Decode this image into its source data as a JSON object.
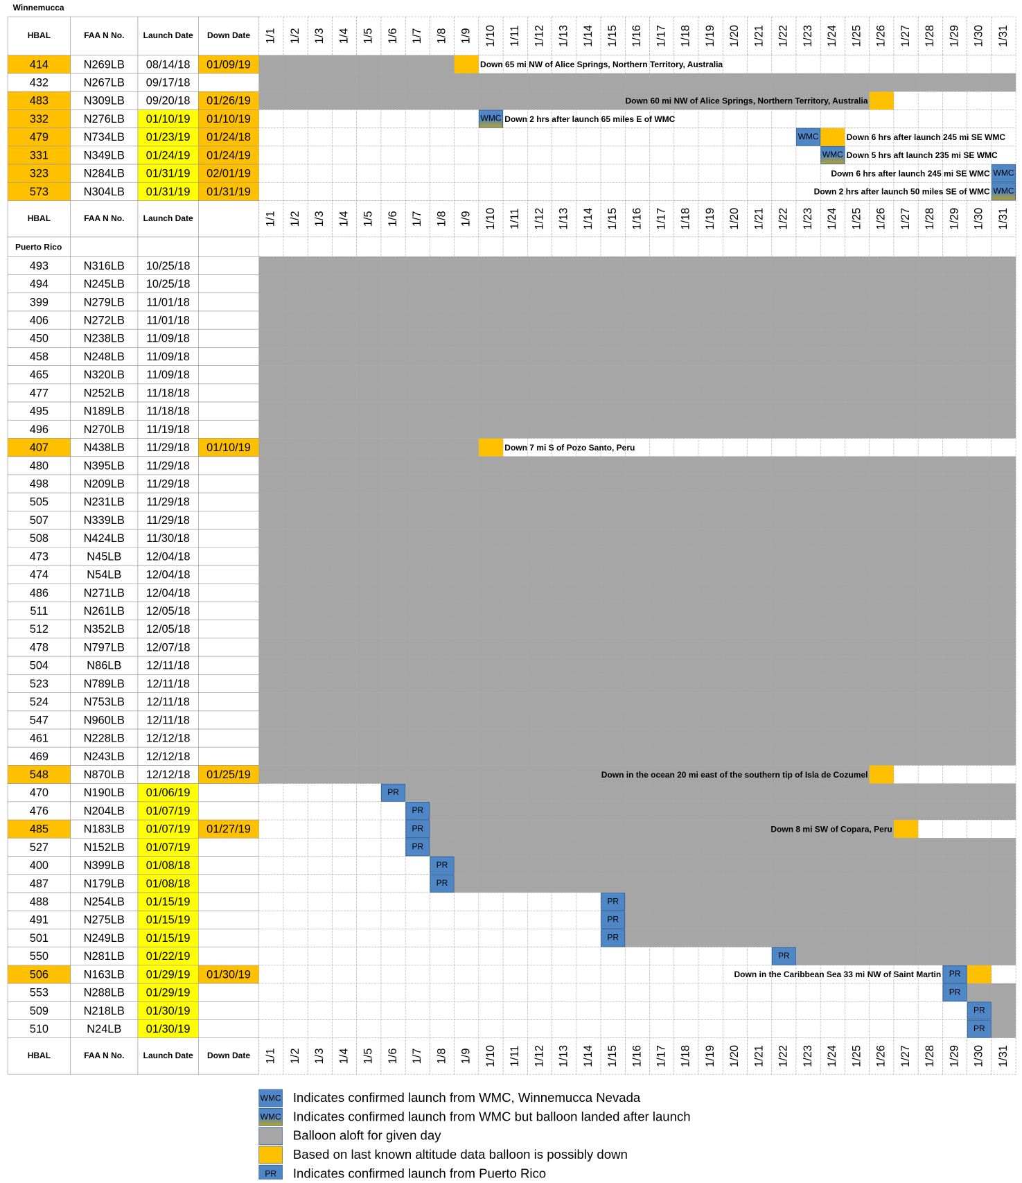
{
  "region_1": "Winnemucca",
  "header": {
    "hbal": "HBAL",
    "faa": "FAA N No.",
    "launch": "Launch Date",
    "down": "Down Date"
  },
  "days": [
    "1/1",
    "1/2",
    "1/3",
    "1/4",
    "1/5",
    "1/6",
    "1/7",
    "1/8",
    "1/9",
    "1/10",
    "1/11",
    "1/12",
    "1/13",
    "1/14",
    "1/15",
    "1/16",
    "1/17",
    "1/18",
    "1/19",
    "1/20",
    "1/21",
    "1/22",
    "1/23",
    "1/24",
    "1/25",
    "1/26",
    "1/27",
    "1/28",
    "1/29",
    "1/30",
    "1/31"
  ],
  "winnemucca_rows": [
    {
      "hbal": "414",
      "faa": "N269LB",
      "launch": "08/14/18",
      "down": "01/09/19",
      "note": "Down 65 mi NW of Alice Springs, Northern Territory, Australia"
    },
    {
      "hbal": "432",
      "faa": "N267LB",
      "launch": "09/17/18"
    },
    {
      "hbal": "483",
      "faa": "N309LB",
      "launch": "09/20/18",
      "down": "01/26/19",
      "note": "Down 60 mi NW of Alice Springs, Northern Territory, Australia"
    },
    {
      "hbal": "332",
      "faa": "N276LB",
      "launch": "01/10/19",
      "down": "01/10/19",
      "tag": "WMC",
      "note": "Down 2 hrs after launch 65 miles E of WMC"
    },
    {
      "hbal": "479",
      "faa": "N734LB",
      "launch": "01/23/19",
      "down": "01/24/18",
      "tag": "WMC",
      "note": "Down 6 hrs after launch 245 mi SE WMC"
    },
    {
      "hbal": "331",
      "faa": "N349LB",
      "launch": "01/24/19",
      "down": "01/24/19",
      "tag": "WMC",
      "note": "Down 5 hrs aft launch 235 mi SE WMC"
    },
    {
      "hbal": "323",
      "faa": "N284LB",
      "launch": "01/31/19",
      "down": "02/01/19",
      "tag": "WMC",
      "note": "Down 6 hrs after launch 245 mi SE WMC"
    },
    {
      "hbal": "573",
      "faa": "N304LB",
      "launch": "01/31/19",
      "down": "01/31/19",
      "tag": "WMC",
      "note": "Down 2 hrs after launch 50 miles SE of WMC"
    }
  ],
  "middle_header": {
    "hbal": "HBAL",
    "faa": "FAA N No.",
    "launch": "Launch Date"
  },
  "region_2": "Puerto Rico",
  "puerto_rico_rows": [
    {
      "hbal": "493",
      "faa": "N316LB",
      "launch": "10/25/18"
    },
    {
      "hbal": "494",
      "faa": "N245LB",
      "launch": "10/25/18"
    },
    {
      "hbal": "399",
      "faa": "N279LB",
      "launch": "11/01/18"
    },
    {
      "hbal": "406",
      "faa": "N272LB",
      "launch": "11/01/18"
    },
    {
      "hbal": "450",
      "faa": "N238LB",
      "launch": "11/09/18"
    },
    {
      "hbal": "458",
      "faa": "N248LB",
      "launch": "11/09/18"
    },
    {
      "hbal": "465",
      "faa": "N320LB",
      "launch": "11/09/18"
    },
    {
      "hbal": "477",
      "faa": "N252LB",
      "launch": "11/18/18"
    },
    {
      "hbal": "495",
      "faa": "N189LB",
      "launch": "11/18/18"
    },
    {
      "hbal": "496",
      "faa": "N270LB",
      "launch": "11/19/18"
    },
    {
      "hbal": "407",
      "faa": "N438LB",
      "launch": "11/29/18",
      "down": "01/10/19",
      "note": "Down 7 mi S of Pozo Santo, Peru"
    },
    {
      "hbal": "480",
      "faa": "N395LB",
      "launch": "11/29/18"
    },
    {
      "hbal": "498",
      "faa": "N209LB",
      "launch": "11/29/18"
    },
    {
      "hbal": "505",
      "faa": "N231LB",
      "launch": "11/29/18"
    },
    {
      "hbal": "507",
      "faa": "N339LB",
      "launch": "11/29/18"
    },
    {
      "hbal": "508",
      "faa": "N424LB",
      "launch": "11/30/18"
    },
    {
      "hbal": "473",
      "faa": "N45LB",
      "launch": "12/04/18"
    },
    {
      "hbal": "474",
      "faa": "N54LB",
      "launch": "12/04/18"
    },
    {
      "hbal": "486",
      "faa": "N271LB",
      "launch": "12/04/18"
    },
    {
      "hbal": "511",
      "faa": "N261LB",
      "launch": "12/05/18"
    },
    {
      "hbal": "512",
      "faa": "N352LB",
      "launch": "12/05/18"
    },
    {
      "hbal": "478",
      "faa": "N797LB",
      "launch": "12/07/18"
    },
    {
      "hbal": "504",
      "faa": "N86LB",
      "launch": "12/11/18"
    },
    {
      "hbal": "523",
      "faa": "N789LB",
      "launch": "12/11/18"
    },
    {
      "hbal": "524",
      "faa": "N753LB",
      "launch": "12/11/18"
    },
    {
      "hbal": "547",
      "faa": "N960LB",
      "launch": "12/11/18"
    },
    {
      "hbal": "461",
      "faa": "N228LB",
      "launch": "12/12/18"
    },
    {
      "hbal": "469",
      "faa": "N243LB",
      "launch": "12/12/18"
    },
    {
      "hbal": "548",
      "faa": "N870LB",
      "launch": "12/12/18",
      "down": "01/25/19",
      "note": "Down in the ocean 20 mi east of the southern tip of Isla de Cozumel"
    },
    {
      "hbal": "470",
      "faa": "N190LB",
      "launch": "01/06/19",
      "tag": "PR"
    },
    {
      "hbal": "476",
      "faa": "N204LB",
      "launch": "01/07/19",
      "tag": "PR"
    },
    {
      "hbal": "485",
      "faa": "N183LB",
      "launch": "01/07/19",
      "down": "01/27/19",
      "tag": "PR",
      "note": "Down 8 mi SW of Copara, Peru"
    },
    {
      "hbal": "527",
      "faa": "N152LB",
      "launch": "01/07/19",
      "tag": "PR"
    },
    {
      "hbal": "400",
      "faa": "N399LB",
      "launch": "01/08/18",
      "tag": "PR"
    },
    {
      "hbal": "487",
      "faa": "N179LB",
      "launch": "01/08/18",
      "tag": "PR"
    },
    {
      "hbal": "488",
      "faa": "N254LB",
      "launch": "01/15/19",
      "tag": "PR"
    },
    {
      "hbal": "491",
      "faa": "N275LB",
      "launch": "01/15/19",
      "tag": "PR"
    },
    {
      "hbal": "501",
      "faa": "N249LB",
      "launch": "01/15/19",
      "tag": "PR"
    },
    {
      "hbal": "550",
      "faa": "N281LB",
      "launch": "01/22/19",
      "tag": "PR"
    },
    {
      "hbal": "506",
      "faa": "N163LB",
      "launch": "01/29/19",
      "down": "01/30/19",
      "tag": "PR",
      "note": "Down in the Caribbean Sea 33 mi NW of Saint  Martin"
    },
    {
      "hbal": "553",
      "faa": "N288LB",
      "launch": "01/29/19",
      "tag": "PR"
    },
    {
      "hbal": "509",
      "faa": "N218LB",
      "launch": "01/30/19",
      "tag": "PR"
    },
    {
      "hbal": "510",
      "faa": "N24LB",
      "launch": "01/30/19",
      "tag": "PR"
    }
  ],
  "legend": [
    {
      "symbol": "WMC",
      "label": "Indicates confirmed launch from WMC, Winnemucca Nevada"
    },
    {
      "symbol": "WMC",
      "label": "Indicates confirmed launch from WMC but balloon landed after launch"
    },
    {
      "label": "Balloon aloft for given day"
    },
    {
      "label": "Based on last known altitude data balloon is possibly down"
    },
    {
      "symbol": "PR",
      "label": "Indicates confirmed launch from Puerto Rico"
    }
  ]
}
